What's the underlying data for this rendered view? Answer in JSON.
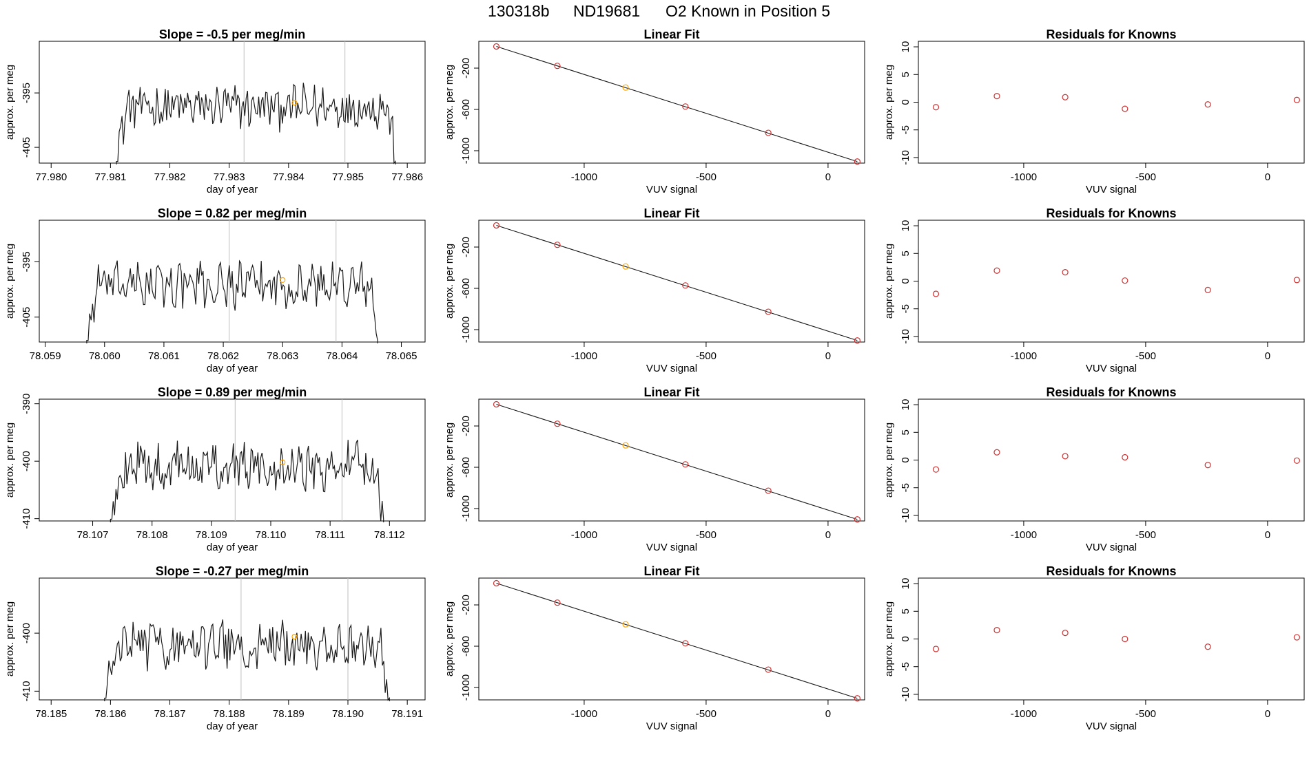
{
  "header": {
    "run_id": "130318b",
    "tank_id": "ND19681",
    "description": "O2 Known in Position  5"
  },
  "colors": {
    "trace": "#1a1a1a",
    "marker_red": "#cd3333",
    "marker_orange": "#ffa500",
    "vline_gray": "#bebebe",
    "axis": "#000000"
  },
  "chart_data": [
    {
      "type": "line",
      "row": 0,
      "panel": "time-series",
      "title_prefix": "Slope = ",
      "slope": "-0.5",
      "title_suffix": " per meg/min",
      "xlabel": "day of year",
      "ylabel": "approx. per meg",
      "xlim": [
        77.9798,
        77.9863
      ],
      "ylim": [
        -407.9,
        -385.5
      ],
      "xticks": [
        "77.980",
        "77.981",
        "77.982",
        "77.983",
        "77.984",
        "77.985",
        "77.986"
      ],
      "yticks": [
        "-395",
        "-405"
      ],
      "start": 77.9811,
      "end": 77.9858,
      "level": -397.6,
      "vlines": [
        77.98325,
        77.98495
      ],
      "orange_point": [
        77.9841,
        -396.8
      ]
    },
    {
      "type": "line",
      "row": 1,
      "panel": "time-series",
      "title_prefix": "Slope = ",
      "slope": "0.82",
      "title_suffix": " per meg/min",
      "xlabel": "day of year",
      "ylabel": "approx. per meg",
      "xlim": [
        78.0589,
        78.0654
      ],
      "ylim": [
        -409.5,
        -387.5
      ],
      "xticks": [
        "78.059",
        "78.060",
        "78.061",
        "78.062",
        "78.063",
        "78.064",
        "78.065"
      ],
      "yticks": [
        "-395",
        "-405"
      ],
      "start": 78.0597,
      "end": 78.0646,
      "level": -399.2,
      "vlines": [
        78.0621,
        78.0639
      ],
      "orange_point": [
        78.063,
        -398.3
      ]
    },
    {
      "type": "line",
      "row": 2,
      "panel": "time-series",
      "title_prefix": "Slope = ",
      "slope": "0.89",
      "title_suffix": " per meg/min",
      "xlabel": "day of year",
      "ylabel": "approx. per meg",
      "xlim": [
        78.1061,
        78.1126
      ],
      "ylim": [
        -410.4,
        -389.2
      ],
      "xticks": [
        "78.107",
        "78.108",
        "78.109",
        "78.110",
        "78.111",
        "78.112"
      ],
      "yticks": [
        "-390",
        "-400",
        "-410"
      ],
      "start": 78.1073,
      "end": 78.1119,
      "level": -400.8,
      "vlines": [
        78.1094,
        78.1112
      ],
      "orange_point": [
        78.1102,
        -400.2
      ]
    },
    {
      "type": "line",
      "row": 3,
      "panel": "time-series",
      "title_prefix": "Slope = ",
      "slope": "-0.27",
      "title_suffix": " per meg/min",
      "xlabel": "day of year",
      "ylabel": "approx. per meg",
      "xlim": [
        78.1848,
        78.1913
      ],
      "ylim": [
        -411.5,
        -390.5
      ],
      "xticks": [
        "78.185",
        "78.186",
        "78.187",
        "78.188",
        "78.189",
        "78.190",
        "78.191"
      ],
      "yticks": [
        "-400",
        "-410"
      ],
      "start": 78.1859,
      "end": 78.1907,
      "level": -402.0,
      "vlines": [
        78.1882,
        78.19
      ],
      "orange_point": [
        78.1891,
        -400.6
      ]
    },
    {
      "type": "scatter",
      "row": 0,
      "panel": "linear-fit",
      "title": "Linear Fit",
      "xlabel": "VUV signal",
      "ylabel": "approx. per meg",
      "xlim": [
        -1432,
        150
      ],
      "ylim": [
        -1120,
        60
      ],
      "xticks": [
        "-1000",
        "-500",
        "0"
      ],
      "yticks": [
        "-200",
        "-600",
        "-1000"
      ],
      "fit_line": [
        [
          -1360,
          10
        ],
        [
          120,
          -1105
        ]
      ],
      "points": [
        [
          -1360,
          10
        ],
        [
          -1110,
          -178
        ],
        [
          -830,
          -388
        ],
        [
          -585,
          -572
        ],
        [
          -245,
          -827
        ],
        [
          120,
          -1105
        ]
      ],
      "orange_index": 2
    },
    {
      "type": "scatter",
      "row": 1,
      "panel": "linear-fit",
      "title": "Linear Fit",
      "xlabel": "VUV signal",
      "ylabel": "approx. per meg",
      "xlim": [
        -1432,
        150
      ],
      "ylim": [
        -1120,
        60
      ],
      "xticks": [
        "-1000",
        "-500",
        "0"
      ],
      "yticks": [
        "-200",
        "-600",
        "-1000"
      ],
      "fit_line": [
        [
          -1360,
          10
        ],
        [
          120,
          -1105
        ]
      ],
      "points": [
        [
          -1360,
          10
        ],
        [
          -1110,
          -178
        ],
        [
          -830,
          -388
        ],
        [
          -585,
          -572
        ],
        [
          -245,
          -827
        ],
        [
          120,
          -1105
        ]
      ],
      "orange_index": 2
    },
    {
      "type": "scatter",
      "row": 2,
      "panel": "linear-fit",
      "title": "Linear Fit",
      "xlabel": "VUV signal",
      "ylabel": "approx. per meg",
      "xlim": [
        -1432,
        150
      ],
      "ylim": [
        -1120,
        60
      ],
      "xticks": [
        "-1000",
        "-500",
        "0"
      ],
      "yticks": [
        "-200",
        "-600",
        "-1000"
      ],
      "fit_line": [
        [
          -1360,
          10
        ],
        [
          120,
          -1105
        ]
      ],
      "points": [
        [
          -1360,
          10
        ],
        [
          -1110,
          -178
        ],
        [
          -830,
          -388
        ],
        [
          -585,
          -572
        ],
        [
          -245,
          -827
        ],
        [
          120,
          -1105
        ]
      ],
      "orange_index": 2
    },
    {
      "type": "scatter",
      "row": 3,
      "panel": "linear-fit",
      "title": "Linear Fit",
      "xlabel": "VUV signal",
      "ylabel": "approx. per meg",
      "xlim": [
        -1432,
        150
      ],
      "ylim": [
        -1120,
        60
      ],
      "xticks": [
        "-1000",
        "-500",
        "0"
      ],
      "yticks": [
        "-200",
        "-600",
        "-1000"
      ],
      "fit_line": [
        [
          -1360,
          10
        ],
        [
          120,
          -1105
        ]
      ],
      "points": [
        [
          -1360,
          10
        ],
        [
          -1110,
          -178
        ],
        [
          -830,
          -388
        ],
        [
          -585,
          -572
        ],
        [
          -245,
          -827
        ],
        [
          120,
          -1105
        ]
      ],
      "orange_index": 2
    },
    {
      "type": "scatter",
      "row": 0,
      "panel": "residuals",
      "title": "Residuals for Knowns",
      "xlabel": "VUV signal",
      "ylabel": "approx. per meg",
      "xlim": [
        -1432,
        150
      ],
      "ylim": [
        -11,
        11
      ],
      "xticks": [
        "-1000",
        "-500",
        "0"
      ],
      "yticks": [
        "10",
        "5",
        "0",
        "-5",
        "-10"
      ],
      "points": [
        [
          -1360,
          -0.9
        ],
        [
          -1110,
          1.1
        ],
        [
          -830,
          0.9
        ],
        [
          -585,
          -1.2
        ],
        [
          -245,
          -0.4
        ],
        [
          120,
          0.4
        ]
      ]
    },
    {
      "type": "scatter",
      "row": 1,
      "panel": "residuals",
      "title": "Residuals for Knowns",
      "xlabel": "VUV signal",
      "ylabel": "approx. per meg",
      "xlim": [
        -1432,
        150
      ],
      "ylim": [
        -11,
        11
      ],
      "xticks": [
        "-1000",
        "-500",
        "0"
      ],
      "yticks": [
        "10",
        "5",
        "0",
        "-5",
        "-10"
      ],
      "points": [
        [
          -1360,
          -2.3
        ],
        [
          -1110,
          1.9
        ],
        [
          -830,
          1.6
        ],
        [
          -585,
          0.1
        ],
        [
          -245,
          -1.6
        ],
        [
          120,
          0.2
        ]
      ]
    },
    {
      "type": "scatter",
      "row": 2,
      "panel": "residuals",
      "title": "Residuals for Knowns",
      "xlabel": "VUV signal",
      "ylabel": "approx. per meg",
      "xlim": [
        -1432,
        150
      ],
      "ylim": [
        -11,
        11
      ],
      "xticks": [
        "-1000",
        "-500",
        "0"
      ],
      "yticks": [
        "10",
        "5",
        "0",
        "-5",
        "-10"
      ],
      "points": [
        [
          -1360,
          -1.7
        ],
        [
          -1110,
          1.4
        ],
        [
          -830,
          0.7
        ],
        [
          -585,
          0.5
        ],
        [
          -245,
          -0.9
        ],
        [
          120,
          -0.1
        ]
      ]
    },
    {
      "type": "scatter",
      "row": 3,
      "panel": "residuals",
      "title": "Residuals for Knowns",
      "xlabel": "VUV signal",
      "ylabel": "approx. per meg",
      "xlim": [
        -1432,
        150
      ],
      "ylim": [
        -11,
        11
      ],
      "xticks": [
        "-1000",
        "-500",
        "0"
      ],
      "yticks": [
        "10",
        "5",
        "0",
        "-5",
        "-10"
      ],
      "points": [
        [
          -1360,
          -1.8
        ],
        [
          -1110,
          1.6
        ],
        [
          -830,
          1.1
        ],
        [
          -585,
          0.0
        ],
        [
          -245,
          -1.4
        ],
        [
          120,
          0.3
        ]
      ]
    }
  ]
}
